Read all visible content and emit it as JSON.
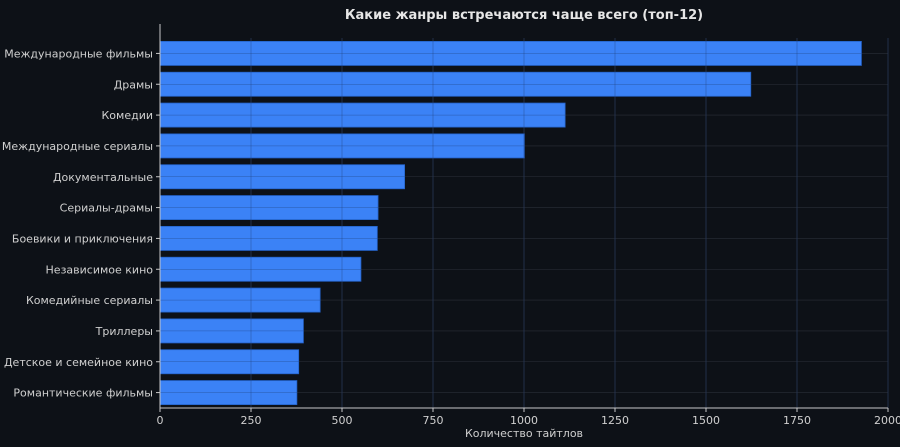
{
  "colors": {
    "background": "#0d1117",
    "bar": "#3b82f6",
    "bar_edge": "#2563c9",
    "grid": "#2a2f38",
    "axis": "#c8c8c8",
    "text": "#d0d0d0"
  },
  "chart_data": {
    "type": "bar",
    "orientation": "horizontal",
    "title": "Какие жанры встречаются чаще всего (топ-12)",
    "xlabel": "Количество тайтлов",
    "ylabel": "",
    "xlim": [
      0,
      2000
    ],
    "xticks": [
      0,
      250,
      500,
      750,
      1000,
      1250,
      1500,
      1750,
      2000
    ],
    "xtick_labels": [
      "0",
      "250",
      "500",
      "750",
      "1000",
      "1250",
      "1500",
      "1750",
      "2000"
    ],
    "grid": true,
    "categories": [
      "Международные фильмы",
      "Драмы",
      "Комедии",
      "Международные сериалы",
      "Документальные",
      "Сериалы-драмы",
      "Боевики и приключения",
      "Независимое кино",
      "Комедийные сериалы",
      "Триллеры",
      "Детское и семейное кино",
      "Романтические фильмы"
    ],
    "values": [
      1927,
      1623,
      1113,
      1001,
      672,
      599,
      597,
      552,
      440,
      394,
      381,
      376
    ]
  }
}
